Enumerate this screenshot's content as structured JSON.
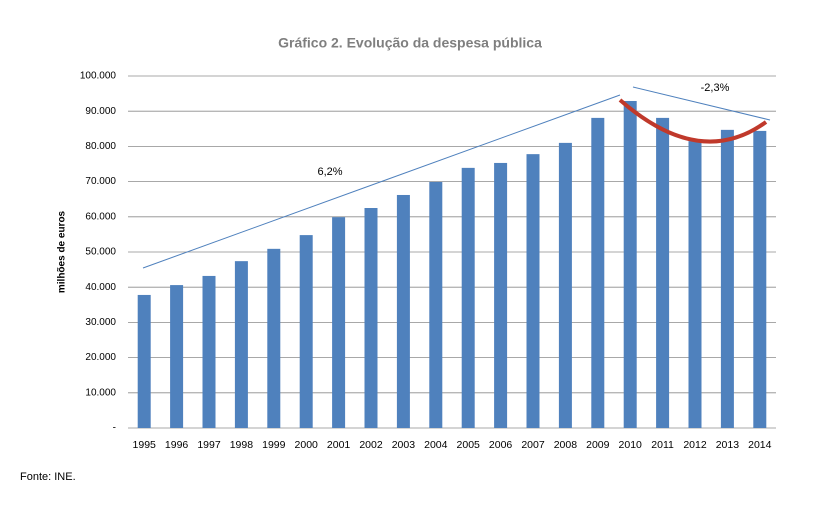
{
  "chart_data": {
    "type": "bar",
    "title": "Gráfico 2. Evolução da despesa pública",
    "y_label": "milhões de euros",
    "source": "Fonte: INE.",
    "annotations": [
      "6,2%",
      "-2,3%"
    ],
    "categories": [
      "1995",
      "1996",
      "1997",
      "1998",
      "1999",
      "2000",
      "2001",
      "2002",
      "2003",
      "2004",
      "2005",
      "2006",
      "2007",
      "2008",
      "2009",
      "2010",
      "2011",
      "2012",
      "2013",
      "2014"
    ],
    "values": [
      37800,
      40600,
      43200,
      47400,
      50900,
      54800,
      59900,
      62500,
      66200,
      69900,
      73900,
      75300,
      77800,
      81000,
      88100,
      92900,
      88100,
      81500,
      84700,
      84400
    ],
    "color": "#4f81bd",
    "ylim": [
      0,
      100000
    ],
    "yticks": [
      {
        "value": 0,
        "label": "-"
      },
      {
        "value": 10000,
        "label": "10.000"
      },
      {
        "value": 20000,
        "label": "20.000"
      },
      {
        "value": 30000,
        "label": "30.000"
      },
      {
        "value": 40000,
        "label": "40.000"
      },
      {
        "value": 50000,
        "label": "50.000"
      },
      {
        "value": 60000,
        "label": "60.000"
      },
      {
        "value": 70000,
        "label": "70.000"
      },
      {
        "value": 80000,
        "label": "80.000"
      },
      {
        "value": 90000,
        "label": "90.000"
      },
      {
        "value": 100000,
        "label": "100.000"
      }
    ],
    "grid": true
  }
}
